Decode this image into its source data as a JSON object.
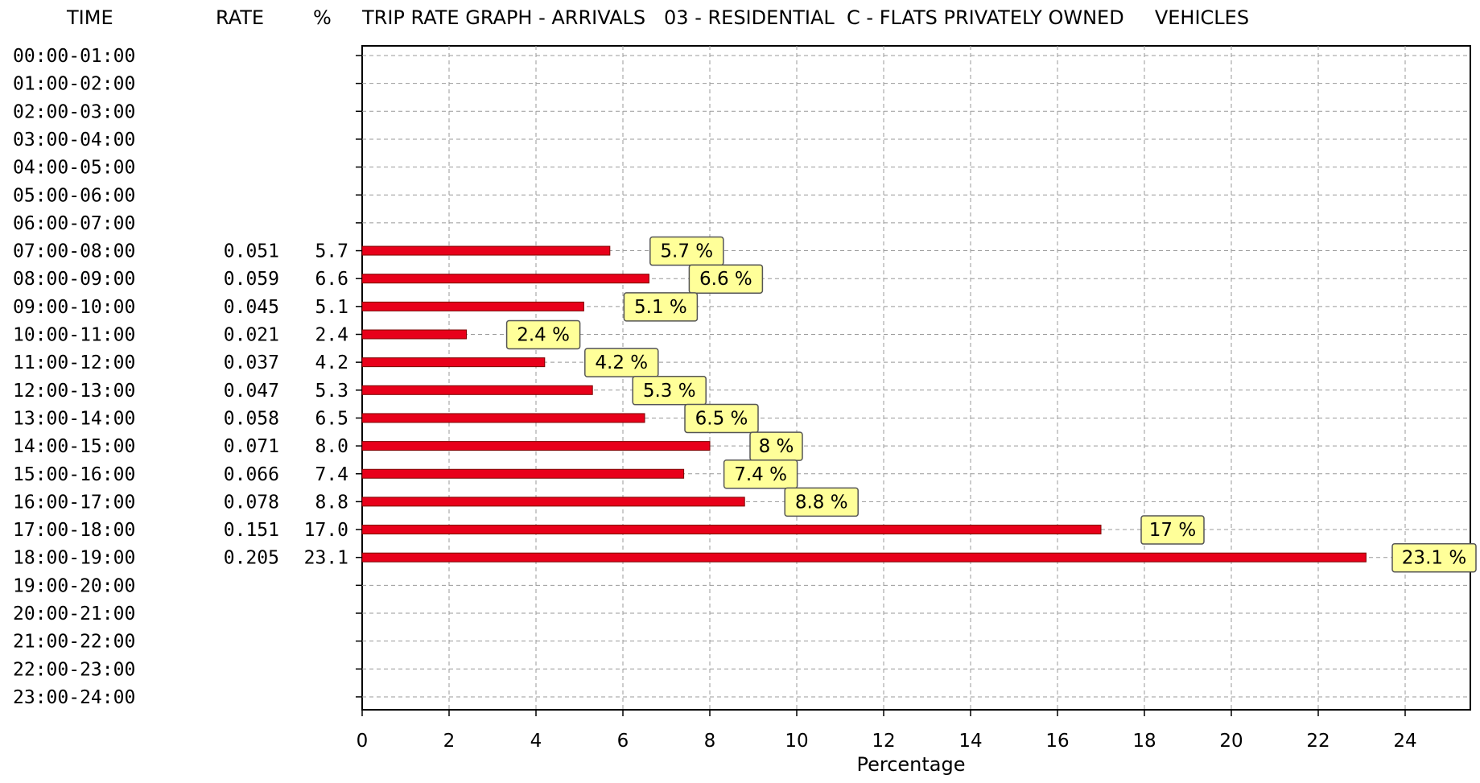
{
  "header": {
    "time_label": "TIME",
    "rate_label": "RATE",
    "pct_label": "%",
    "title": "TRIP RATE GRAPH - ARRIVALS   03 - RESIDENTIAL  C - FLATS PRIVATELY OWNED     VEHICLES"
  },
  "colors": {
    "bar": "#e8001a",
    "bar_border": "#7a0000",
    "label_bg": "#ffff99",
    "label_border": "#555555",
    "grid": "#999999"
  },
  "chart_data": {
    "type": "bar",
    "orientation": "horizontal",
    "title": "TRIP RATE GRAPH - ARRIVALS   03 - RESIDENTIAL  C - FLATS PRIVATELY OWNED     VEHICLES",
    "xlabel": "Percentage",
    "ylabel": "",
    "xlim": [
      0,
      25.5
    ],
    "x_ticks": [
      0,
      2,
      4,
      6,
      8,
      10,
      12,
      14,
      16,
      18,
      20,
      22,
      24
    ],
    "grid": true,
    "categories": [
      "00:00-01:00",
      "01:00-02:00",
      "02:00-03:00",
      "03:00-04:00",
      "04:00-05:00",
      "05:00-06:00",
      "06:00-07:00",
      "07:00-08:00",
      "08:00-09:00",
      "09:00-10:00",
      "10:00-11:00",
      "11:00-12:00",
      "12:00-13:00",
      "13:00-14:00",
      "14:00-15:00",
      "15:00-16:00",
      "16:00-17:00",
      "17:00-18:00",
      "18:00-19:00",
      "19:00-20:00",
      "20:00-21:00",
      "21:00-22:00",
      "22:00-23:00",
      "23:00-24:00"
    ],
    "rates": [
      "",
      "",
      "",
      "",
      "",
      "",
      "",
      "0.051",
      "0.059",
      "0.045",
      "0.021",
      "0.037",
      "0.047",
      "0.058",
      "0.071",
      "0.066",
      "0.078",
      "0.151",
      "0.205",
      "",
      "",
      "",
      "",
      ""
    ],
    "percent_text": [
      "",
      "",
      "",
      "",
      "",
      "",
      "",
      "5.7",
      "6.6",
      "5.1",
      "2.4",
      "4.2",
      "5.3",
      "6.5",
      "8.0",
      "7.4",
      "8.8",
      "17.0",
      "23.1",
      "",
      "",
      "",
      "",
      ""
    ],
    "values": [
      null,
      null,
      null,
      null,
      null,
      null,
      null,
      5.7,
      6.6,
      5.1,
      2.4,
      4.2,
      5.3,
      6.5,
      8.0,
      7.4,
      8.8,
      17.0,
      23.1,
      null,
      null,
      null,
      null,
      null
    ],
    "data_labels": [
      "",
      "",
      "",
      "",
      "",
      "",
      "",
      "5.7 %",
      "6.6 %",
      "5.1 %",
      "2.4 %",
      "4.2 %",
      "5.3 %",
      "6.5 %",
      "8 %",
      "7.4 %",
      "8.8 %",
      "17 %",
      "23.1 %",
      "",
      "",
      "",
      "",
      ""
    ]
  }
}
